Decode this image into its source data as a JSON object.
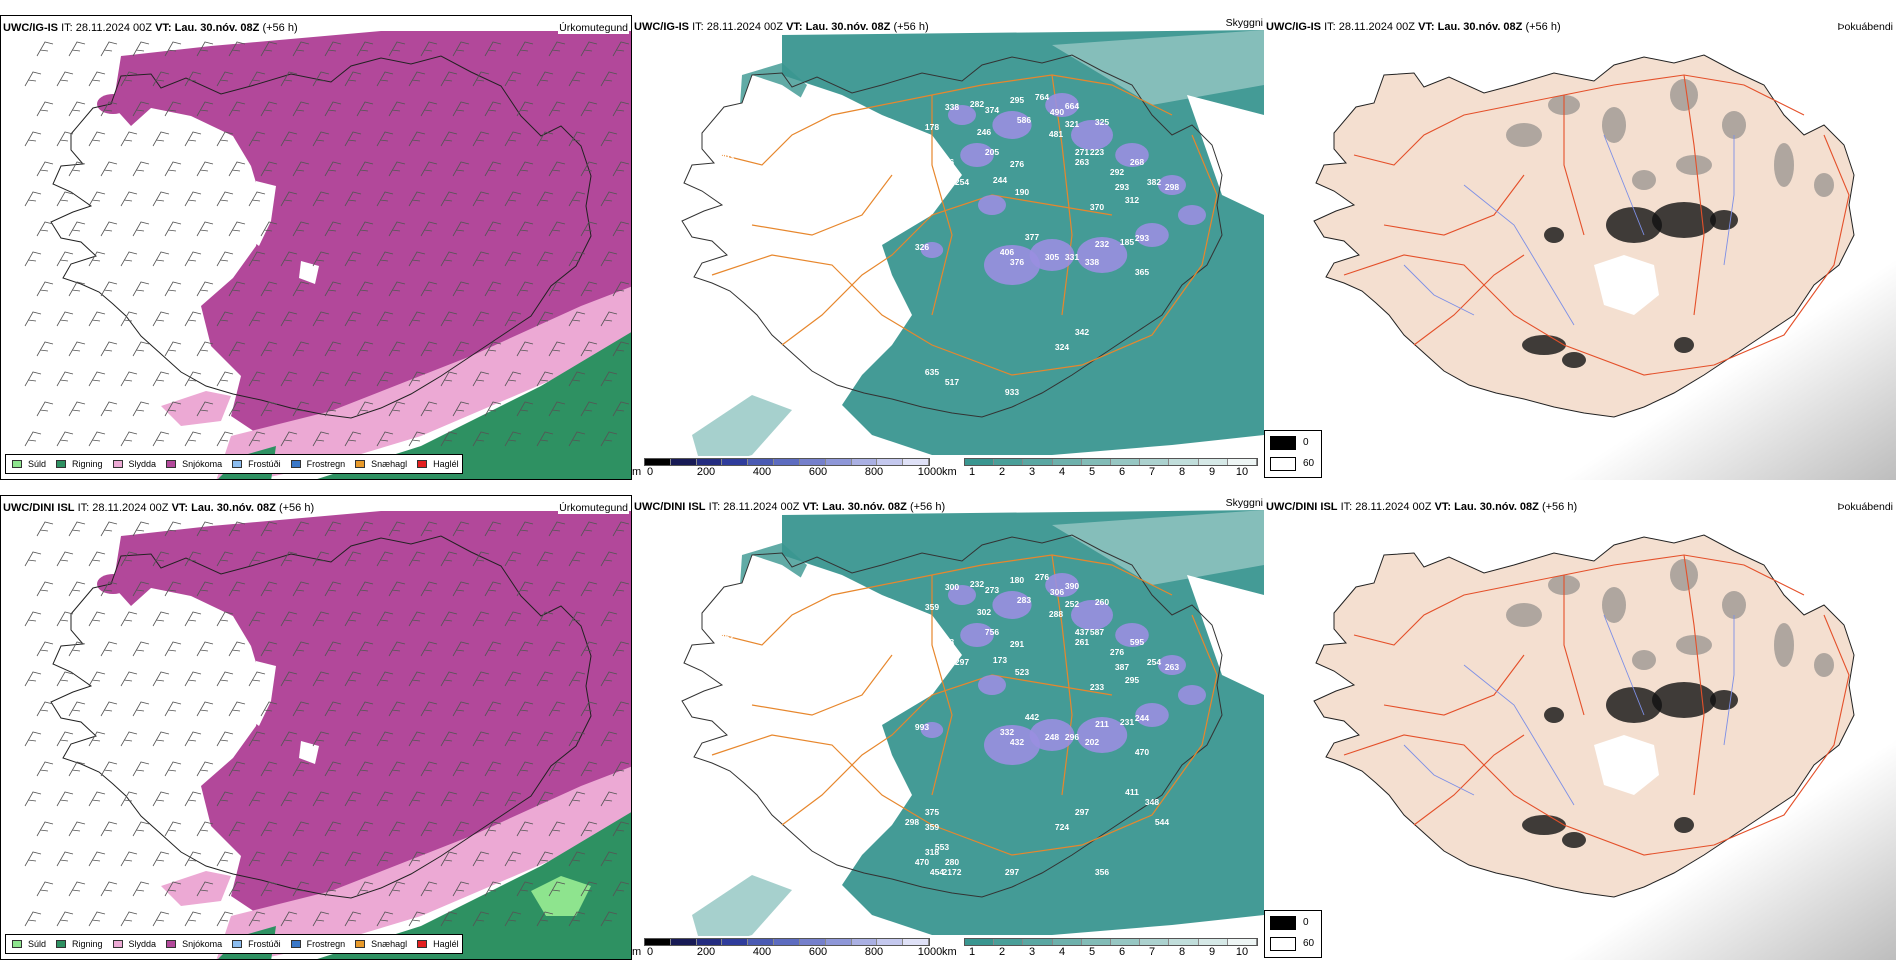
{
  "palette": {
    "snow": "#b2489a",
    "sleet": "#eca9d4",
    "rain": "#2e9162",
    "drizzle": "#8ee48e",
    "cloud": "#3a9690",
    "land_beige": "#f4dfd0",
    "roads_orange": "#e7872d",
    "roads_red": "#e4502a",
    "rivers_blue": "#7d8fe6"
  },
  "rows": [
    {
      "model": "UWC/IG-IS",
      "it_label": "IT:",
      "it_value": "28.11.2024 00Z",
      "vt_label": "VT:",
      "vt_value": "Lau. 30.nóv. 08Z",
      "lead": "(+56 h)",
      "elevations": [
        "338",
        "282",
        "374",
        "295",
        "764",
        "490",
        "664",
        "178",
        "246",
        "586",
        "481",
        "321",
        "325",
        "893",
        "186",
        "205",
        "276",
        "263",
        "271",
        "223",
        "254",
        "244",
        "190",
        "268",
        "292",
        "293",
        "312",
        "382",
        "298",
        "370",
        "326",
        "232",
        "185",
        "293",
        "377",
        "406",
        "305",
        "331",
        "338",
        "376",
        "365",
        "342",
        "324",
        "635",
        "517",
        "933"
      ]
    },
    {
      "model": "UWC/DINI ISL",
      "it_label": "IT:",
      "it_value": "28.11.2024 00Z",
      "vt_label": "VT:",
      "vt_value": "Lau. 30.nóv. 08Z",
      "lead": "(+56 h)",
      "elevations": [
        "300",
        "232",
        "273",
        "180",
        "276",
        "306",
        "390",
        "359",
        "302",
        "283",
        "288",
        "252",
        "260",
        "252",
        "308",
        "756",
        "291",
        "261",
        "437",
        "587",
        "297",
        "173",
        "523",
        "595",
        "276",
        "387",
        "295",
        "254",
        "263",
        "233",
        "993",
        "211",
        "231",
        "244",
        "442",
        "332",
        "248",
        "296",
        "202",
        "432",
        "470",
        "297",
        "724",
        "318",
        "280",
        "297",
        "411",
        "356",
        "375",
        "348",
        "544",
        "298",
        "359",
        "553",
        "470",
        "454",
        "2172"
      ]
    }
  ],
  "precip_panel": {
    "title": "Úrkomutegund",
    "legend": [
      {
        "label": "Súld",
        "color": "#8ee48e"
      },
      {
        "label": "Rigning",
        "color": "#2e9162"
      },
      {
        "label": "Slydda",
        "color": "#eca9d4"
      },
      {
        "label": "Snjókoma",
        "color": "#b2489a"
      },
      {
        "label": "Frostúði",
        "color": "#8cbdf0"
      },
      {
        "label": "Frostregn",
        "color": "#3a78c8"
      },
      {
        "label": "Snæhagl",
        "color": "#e89a2a"
      },
      {
        "label": "Haglél",
        "color": "#e41f1f"
      }
    ]
  },
  "cloud_panel": {
    "title": "Skyggni",
    "base_unit": "m",
    "base_ticks": [
      "0",
      "200",
      "400",
      "600",
      "800",
      "1000"
    ],
    "vis_unit": "km",
    "vis_ticks": [
      "1",
      "2",
      "3",
      "4",
      "5",
      "6",
      "7",
      "8",
      "9",
      "10"
    ]
  },
  "fog_panel": {
    "title": "Þokuábendi",
    "key_black": "0",
    "key_white": "60"
  }
}
